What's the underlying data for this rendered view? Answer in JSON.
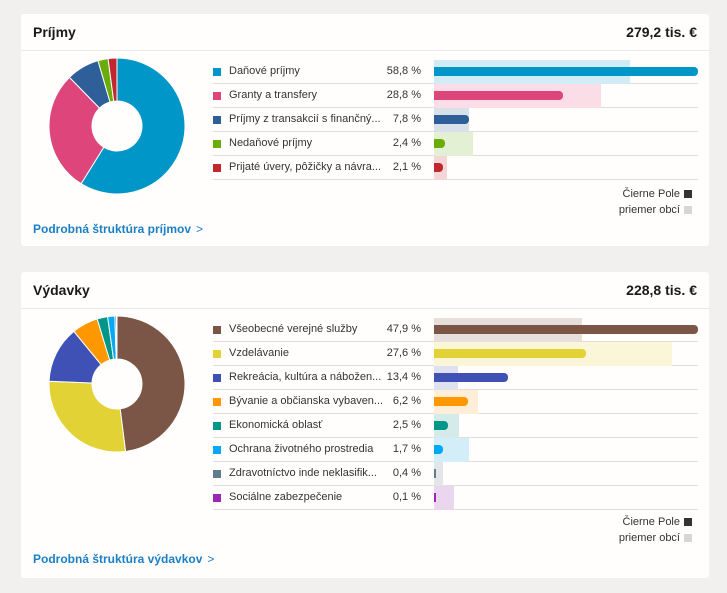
{
  "income": {
    "title": "Príjmy",
    "total": "279,2 tis. €",
    "detail_link": "Podrobná štruktúra príjmov",
    "detail_link_chevron": ">",
    "legend": {
      "municipality": "Čierne Pole",
      "average": "priemer obcí",
      "municipality_color": "#333333",
      "average_color": "#d6d6d6"
    }
  },
  "expense": {
    "title": "Výdavky",
    "total": "228,8 tis. €",
    "detail_link": "Podrobná štruktúra výdavkov",
    "detail_link_chevron": ">",
    "legend": {
      "municipality": "Čierne Pole",
      "average": "priemer obcí",
      "municipality_color": "#333333",
      "average_color": "#d6d6d6"
    }
  },
  "chart_data": [
    {
      "type": "bar",
      "subtype": "donut+horizontal-bar-comparison",
      "title": "Príjmy",
      "total": "279,2 tis. €",
      "value_unit": "%",
      "categories": [
        "Daňové príjmy",
        "Granty a transfery",
        "Príjmy z transakcií s finančný...",
        "Nedaňové príjmy",
        "Prijaté úvery, pôžičky a návra..."
      ],
      "pct_labels": [
        "58,8 %",
        "28,8 %",
        "7,8 %",
        "2,4 %",
        "2,1 %"
      ],
      "colors": [
        "#0097c8",
        "#de457b",
        "#2e5f98",
        "#6aad0a",
        "#c0282e"
      ],
      "avg_colors": [
        "#d2ecf5",
        "#fadde7",
        "#d8e0ea",
        "#e3f0d4",
        "#f5d6d7"
      ],
      "series": [
        {
          "name": "Čierne Pole",
          "values": [
            58.8,
            28.8,
            7.8,
            2.4,
            2.1
          ]
        },
        {
          "name": "priemer obcí",
          "values": [
            43.6,
            37.2,
            7.8,
            8.7,
            2.9
          ]
        }
      ],
      "xlim": [
        0,
        58.8
      ],
      "legend_position": "bottom-right"
    },
    {
      "type": "bar",
      "subtype": "donut+horizontal-bar-comparison",
      "title": "Výdavky",
      "total": "228,8 tis. €",
      "value_unit": "%",
      "categories": [
        "Všeobecné verejné služby",
        "Vzdelávanie",
        "Rekreácia, kultúra a nábožen...",
        "Bývanie a občianska vybaven...",
        "Ekonomická oblasť",
        "Ochrana životného prostredia",
        "Zdravotníctvo inde neklasifik...",
        "Sociálne zabezpečenie"
      ],
      "pct_labels": [
        "47,9 %",
        "27,6 %",
        "13,4 %",
        "6,2 %",
        "2,5 %",
        "1,7 %",
        "0,4 %",
        "0,1 %"
      ],
      "colors": [
        "#7b5546",
        "#e2d235",
        "#3f51b5",
        "#ff9800",
        "#009688",
        "#03a9f4",
        "#607d8b",
        "#9c27b0"
      ],
      "avg_colors": [
        "#e6dfdc",
        "#faf6d7",
        "#dfe1f1",
        "#feeed8",
        "#d4ebe9",
        "#d3edf9",
        "#e2e6e8",
        "#ead7ef"
      ],
      "series": [
        {
          "name": "Čierne Pole",
          "values": [
            47.9,
            27.6,
            13.4,
            6.2,
            2.5,
            1.7,
            0.4,
            0.1
          ]
        },
        {
          "name": "priemer obcí",
          "values": [
            26.8,
            43.2,
            4.4,
            8.0,
            4.5,
            6.4,
            1.6,
            3.6
          ]
        }
      ],
      "xlim": [
        0,
        47.9
      ],
      "legend_position": "bottom-right"
    }
  ]
}
